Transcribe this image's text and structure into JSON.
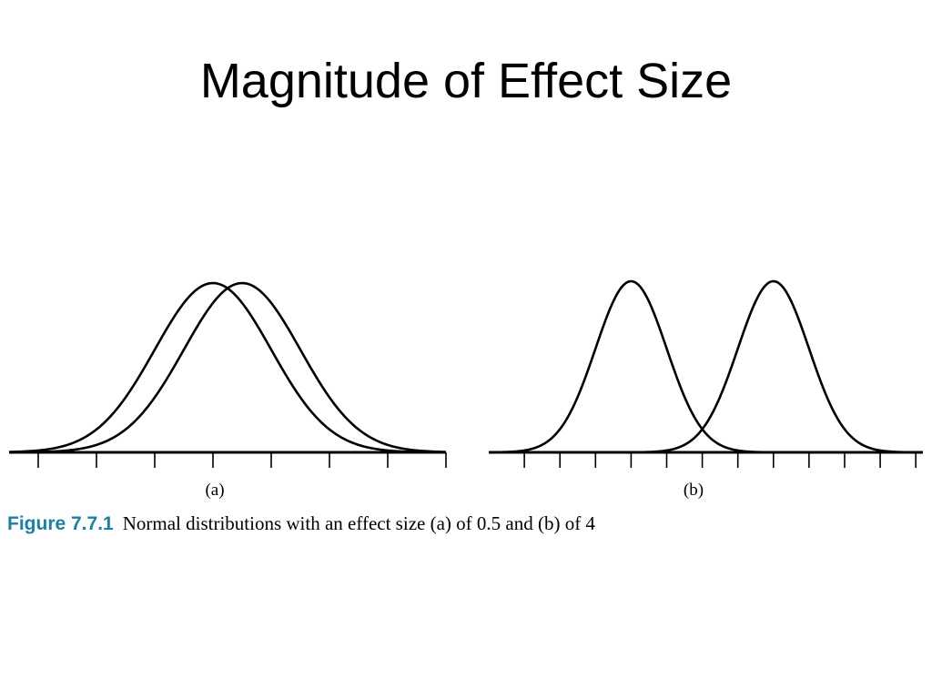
{
  "slide": {
    "title": "Magnitude of Effect Size"
  },
  "caption": {
    "figure_label": "Figure 7.7.1",
    "text": "Normal distributions with an effect size (a) of 0.5 and (b) of 4",
    "figure_label_color": "#1a7fa8"
  },
  "chart_data": [
    {
      "type": "line",
      "panel_label": "(a)",
      "distribution": "normal",
      "effect_size": 0.5,
      "series": [
        {
          "mean": 0,
          "sd": 1
        },
        {
          "mean": 0.5,
          "sd": 1
        }
      ],
      "xlim": [
        -3.5,
        4.0
      ],
      "ticks": [
        -3,
        -2,
        -1,
        0,
        1,
        2,
        3,
        4
      ]
    },
    {
      "type": "line",
      "panel_label": "(b)",
      "distribution": "normal",
      "effect_size": 4,
      "series": [
        {
          "mean": 0,
          "sd": 1
        },
        {
          "mean": 4,
          "sd": 1
        }
      ],
      "xlim": [
        -4,
        8.2
      ],
      "ticks": [
        -3,
        -2,
        -1,
        0,
        1,
        2,
        3,
        4,
        5,
        6,
        7,
        8
      ]
    }
  ]
}
